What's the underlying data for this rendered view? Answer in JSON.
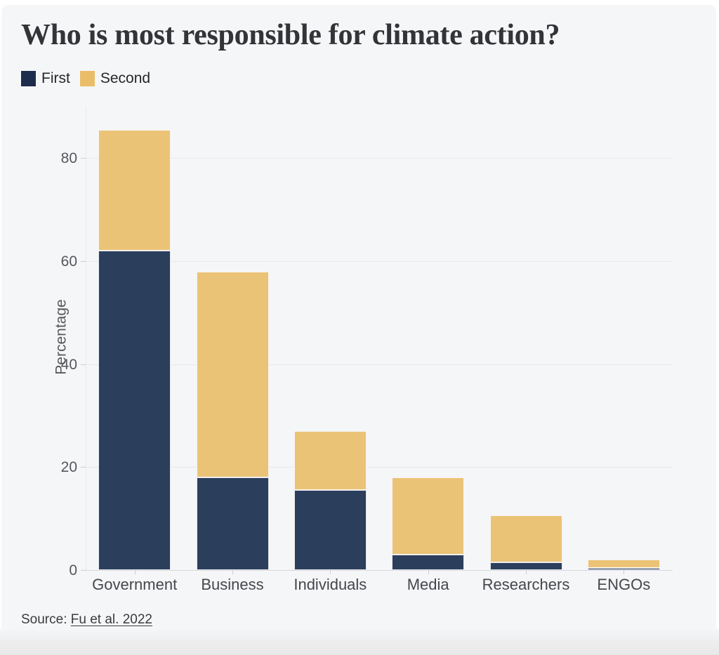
{
  "title": "Who is most responsible for climate action?",
  "legend": [
    {
      "label": "First",
      "color": "#1d2c4c"
    },
    {
      "label": "Second",
      "color": "#eabd68"
    }
  ],
  "source": {
    "prefix": "Source: ",
    "link_text": "Fu et al. 2022"
  },
  "colors": {
    "first_bar": "#2b3e5c",
    "second_bar": "#ebc377",
    "background": "#f5f6f8",
    "gridline": "#e9e9ec"
  },
  "chart_data": {
    "type": "bar",
    "stacked": true,
    "title": "Who is most responsible for climate action?",
    "categories": [
      "Government",
      "Business",
      "Individuals",
      "Media",
      "Researchers",
      "ENGOs"
    ],
    "series": [
      {
        "name": "First",
        "color": "#2b3e5c",
        "values": [
          62,
          18,
          15.5,
          3,
          1.5,
          0.4
        ]
      },
      {
        "name": "Second",
        "color": "#ebc377",
        "values": [
          23.5,
          40,
          11.5,
          15,
          9.2,
          1.6
        ]
      }
    ],
    "totals": [
      85.5,
      58,
      27,
      18,
      10.7,
      2
    ],
    "xlabel": "",
    "ylabel": "Percentage",
    "yticks": [
      0,
      20,
      40,
      60,
      80
    ],
    "ylim": [
      0,
      90
    ],
    "grid": true,
    "legend_position": "top-left",
    "source": "Fu et al. 2022"
  }
}
